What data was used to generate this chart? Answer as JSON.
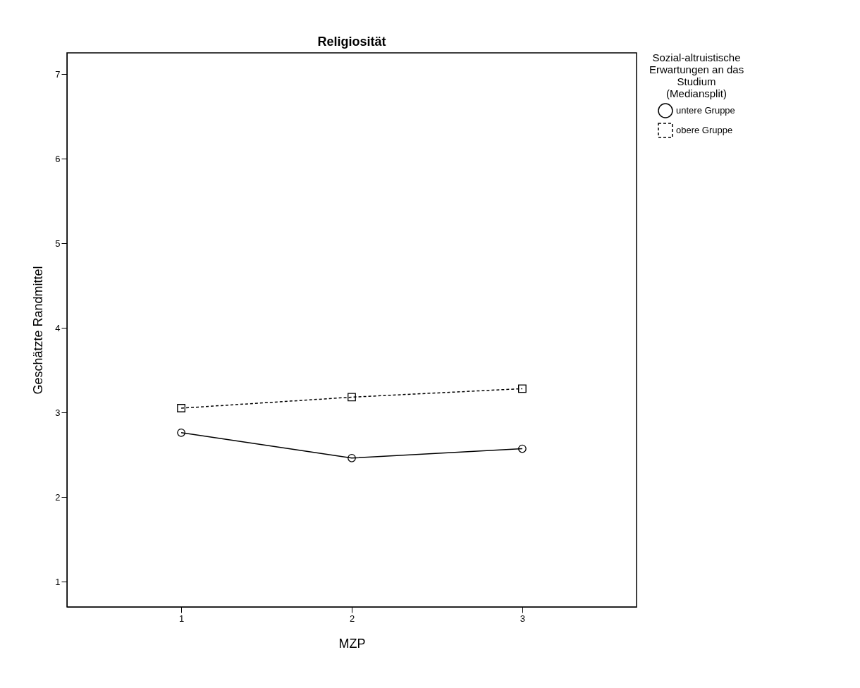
{
  "chart_data": {
    "type": "line",
    "title": "Religiosität",
    "xlabel": "MZP",
    "ylabel": "Geschätzte Randmittel",
    "legend_title": "Sozial-altruistische\nErwartungen an das\nStudium\n(Mediansplit)",
    "categories": [
      "1",
      "2",
      "3"
    ],
    "series": [
      {
        "name": "untere Gruppe",
        "color": "#000000",
        "values": [
          2.76,
          2.46,
          2.57
        ],
        "line_style": "solid",
        "marker": "circle"
      },
      {
        "name": "obere Gruppe",
        "color": "#000000",
        "values": [
          3.05,
          3.18,
          3.28
        ],
        "line_style": "dashed",
        "marker": "square"
      }
    ],
    "ylim": [
      0.7,
      7.25
    ],
    "yticks": [
      1,
      2,
      3,
      4,
      5,
      6,
      7
    ],
    "grid": false,
    "legend": "top right"
  }
}
